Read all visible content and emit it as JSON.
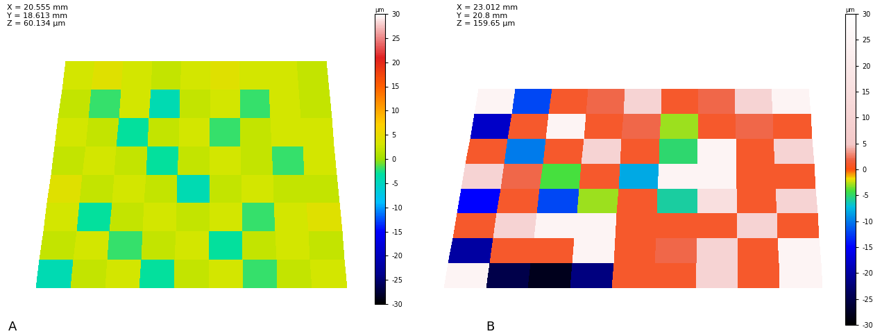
{
  "chart_data": [
    {
      "type": "heatmap",
      "panel_label": "A",
      "header": [
        "X = 20.555 mm",
        "Y = 18.613 mm",
        "Z = 60.134 µm"
      ],
      "cells": [
        [
          3,
          4,
          3,
          2,
          3,
          4,
          3,
          3,
          2
        ],
        [
          2,
          -2,
          3,
          -4,
          2,
          3,
          -2,
          3,
          2
        ],
        [
          3,
          2,
          -3,
          2,
          3,
          -2,
          2,
          3,
          3
        ],
        [
          2,
          3,
          2,
          -3,
          2,
          3,
          2,
          -2,
          3
        ],
        [
          4,
          2,
          3,
          2,
          -4,
          2,
          3,
          2,
          2
        ],
        [
          3,
          -3,
          2,
          3,
          2,
          3,
          -2,
          3,
          4
        ],
        [
          2,
          3,
          -2,
          2,
          3,
          -3,
          2,
          3,
          2
        ],
        [
          -4,
          2,
          3,
          -3,
          2,
          3,
          -2,
          2,
          3
        ]
      ],
      "colorbar_label": "µm",
      "colorbar_lim": [
        -30,
        30
      ],
      "colorbar_ticks": [
        30,
        25,
        20,
        15,
        10,
        5,
        0,
        -5,
        -10,
        -15,
        -20,
        -25,
        -30
      ],
      "tick_labels": false
    },
    {
      "type": "heatmap",
      "panel_label": "B",
      "header": [
        "X = 23.012 mm",
        "Y = 20.8 mm",
        "Z = 159.65 µm"
      ],
      "cells": [
        [
          25,
          -12,
          1,
          2,
          10,
          1,
          2,
          10,
          25
        ],
        [
          -18,
          1,
          25,
          1,
          2,
          -3,
          1,
          2,
          1
        ],
        [
          1,
          -10,
          1,
          10,
          1,
          -5,
          25,
          1,
          10
        ],
        [
          10,
          2,
          -4,
          1,
          -8,
          25,
          25,
          1,
          1
        ],
        [
          -15,
          1,
          -12,
          -3,
          1,
          -6,
          15,
          1,
          10
        ],
        [
          1,
          10,
          25,
          25,
          1,
          1,
          1,
          10,
          1
        ],
        [
          -20,
          1,
          1,
          25,
          1,
          2,
          10,
          1,
          25
        ],
        [
          25,
          -25,
          -28,
          -22,
          1,
          1,
          10,
          1,
          25
        ]
      ],
      "colorbar_label": "µm",
      "colorbar_lim": [
        -30,
        30
      ],
      "colorbar_ticks": [
        30,
        25,
        20,
        15,
        10,
        5,
        0,
        -5,
        -10,
        -15,
        -20,
        -25,
        -30
      ],
      "tick_labels": false
    }
  ]
}
